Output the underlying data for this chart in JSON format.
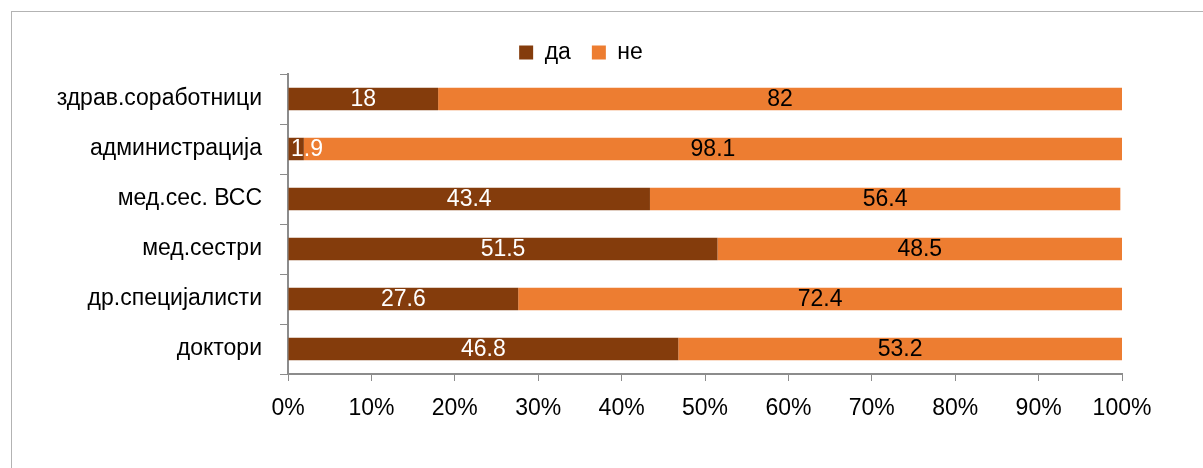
{
  "chart_data": {
    "type": "bar",
    "orientation": "horizontal",
    "stacked": true,
    "categories": [
      "здрав.соработници",
      "администрација",
      "мед.сес. ВСС",
      "мед.сестри",
      "др.специјалисти",
      "доктори"
    ],
    "series": [
      {
        "name": "да",
        "color": "#843c0c",
        "values": [
          18,
          1.9,
          43.4,
          51.5,
          27.6,
          46.8
        ]
      },
      {
        "name": "не",
        "color": "#ed7d31",
        "values": [
          82,
          98.1,
          56.4,
          48.5,
          72.4,
          53.2
        ]
      }
    ],
    "xlim": [
      0,
      100
    ],
    "xticks": [
      {
        "value": 0,
        "label": "0%"
      },
      {
        "value": 10,
        "label": "10%"
      },
      {
        "value": 20,
        "label": "20%"
      },
      {
        "value": 30,
        "label": "30%"
      },
      {
        "value": 40,
        "label": "40%"
      },
      {
        "value": 50,
        "label": "50%"
      },
      {
        "value": 60,
        "label": "60%"
      },
      {
        "value": 70,
        "label": "70%"
      },
      {
        "value": 80,
        "label": "80%"
      },
      {
        "value": 90,
        "label": "90%"
      },
      {
        "value": 100,
        "label": "100%"
      }
    ],
    "data_labels": true,
    "legend": "top",
    "grid": false
  }
}
